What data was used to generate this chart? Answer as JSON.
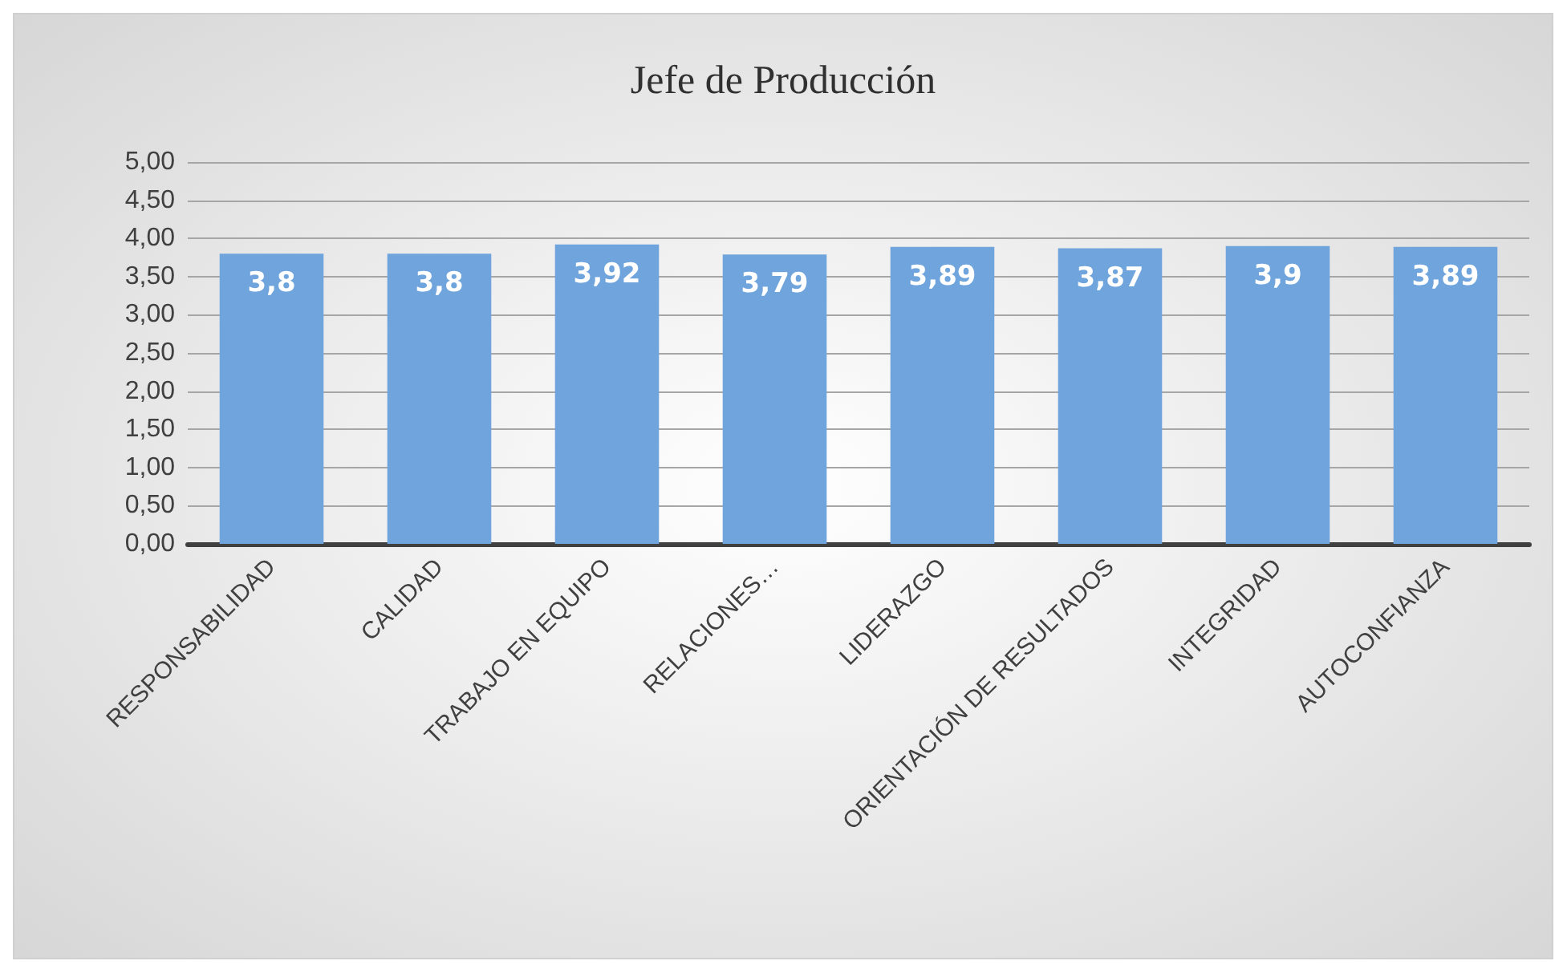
{
  "chart_data": {
    "type": "bar",
    "title": "Jefe de Producción",
    "categories": [
      "RESPONSABILIDAD",
      "CALIDAD",
      "TRABAJO EN EQUIPO",
      "RELACIONES…",
      "LIDERAZGO",
      "ORIENTACIÓN DE RESULTADOS",
      "INTEGRIDAD",
      "AUTOCONFIANZA"
    ],
    "values": [
      3.8,
      3.8,
      3.92,
      3.79,
      3.89,
      3.87,
      3.9,
      3.89
    ],
    "value_labels": [
      "3,8",
      "3,8",
      "3,92",
      "3,79",
      "3,89",
      "3,87",
      "3,9",
      "3,89"
    ],
    "color": "#6fa5dc",
    "ylim": [
      0,
      5
    ],
    "yticks": [
      {
        "value": 0,
        "label": "0,00"
      },
      {
        "value": 0.5,
        "label": "0,50"
      },
      {
        "value": 1,
        "label": "1,00"
      },
      {
        "value": 1.5,
        "label": "1,50"
      },
      {
        "value": 2,
        "label": "2,00"
      },
      {
        "value": 2.5,
        "label": "2,50"
      },
      {
        "value": 3,
        "label": "3,00"
      },
      {
        "value": 3.5,
        "label": "3,50"
      },
      {
        "value": 4,
        "label": "4,00"
      },
      {
        "value": 4.5,
        "label": "4,50"
      },
      {
        "value": 5,
        "label": "5,00"
      }
    ],
    "grid": "y"
  }
}
